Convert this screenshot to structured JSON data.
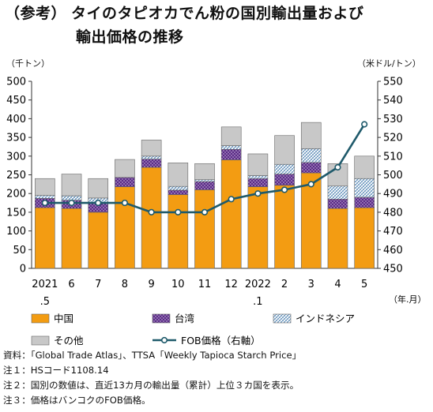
{
  "title": {
    "tag": "（参考）",
    "line1": "タイのタピオカでん粉の国別輸出量および",
    "line2": "輸出価格の推移"
  },
  "units": {
    "left": "（千トン）",
    "right": "（米ドル/トン）",
    "x": "（年.月）"
  },
  "chart_data": {
    "type": "bar",
    "stacked": true,
    "categories": [
      {
        "top": "2021",
        "bottom": ".5"
      },
      {
        "top": "6",
        "bottom": ""
      },
      {
        "top": "7",
        "bottom": ""
      },
      {
        "top": "8",
        "bottom": ""
      },
      {
        "top": "9",
        "bottom": ""
      },
      {
        "top": "10",
        "bottom": ""
      },
      {
        "top": "11",
        "bottom": ""
      },
      {
        "top": "12",
        "bottom": ""
      },
      {
        "top": "2022",
        "bottom": ".1"
      },
      {
        "top": "2",
        "bottom": ""
      },
      {
        "top": "3",
        "bottom": ""
      },
      {
        "top": "4",
        "bottom": ""
      },
      {
        "top": "5",
        "bottom": ""
      }
    ],
    "series": [
      {
        "name": "中国",
        "color": "#f39c12",
        "pattern": "solid",
        "values": [
          162,
          160,
          150,
          218,
          270,
          197,
          210,
          290,
          218,
          222,
          255,
          160,
          162
        ]
      },
      {
        "name": "台湾",
        "color": "#5b2c86",
        "pattern": "dots",
        "values": [
          25,
          22,
          25,
          25,
          22,
          12,
          22,
          28,
          22,
          30,
          28,
          25,
          28
        ]
      },
      {
        "name": "インドネシア",
        "color": "#ffffff",
        "pattern": "hatch",
        "values": [
          8,
          12,
          13,
          0,
          8,
          10,
          5,
          10,
          8,
          26,
          37,
          35,
          50
        ]
      },
      {
        "name": "その他",
        "color": "#c8c8c8",
        "pattern": "solid",
        "values": [
          45,
          58,
          52,
          48,
          43,
          63,
          43,
          50,
          58,
          77,
          70,
          60,
          60
        ]
      }
    ],
    "line": {
      "name": "FOB価格（右軸）",
      "color": "#1f5a6b",
      "values": [
        485,
        485,
        485,
        485,
        480,
        480,
        480,
        487,
        490,
        492,
        495,
        504,
        527
      ]
    },
    "y_left": {
      "min": 0,
      "max": 500,
      "step": 50
    },
    "y_right": {
      "min": 450,
      "max": 550,
      "step": 10
    },
    "legend": [
      {
        "label": "中国",
        "key": "china"
      },
      {
        "label": "台湾",
        "key": "taiwan"
      },
      {
        "label": "インドネシア",
        "key": "indonesia"
      },
      {
        "label": "その他",
        "key": "other"
      },
      {
        "label": "FOB価格（右軸）",
        "key": "line"
      }
    ]
  },
  "notes": [
    "資料：「Global Trade Atlas」、TTSA「Weekly Tapioca Starch Price」",
    "注１：HSコード1108.14",
    "注２：国別の数値は、直近13カ月の輸出量（累計）上位３カ国を表示。",
    "注３：価格はバンコクのFOB価格。"
  ]
}
